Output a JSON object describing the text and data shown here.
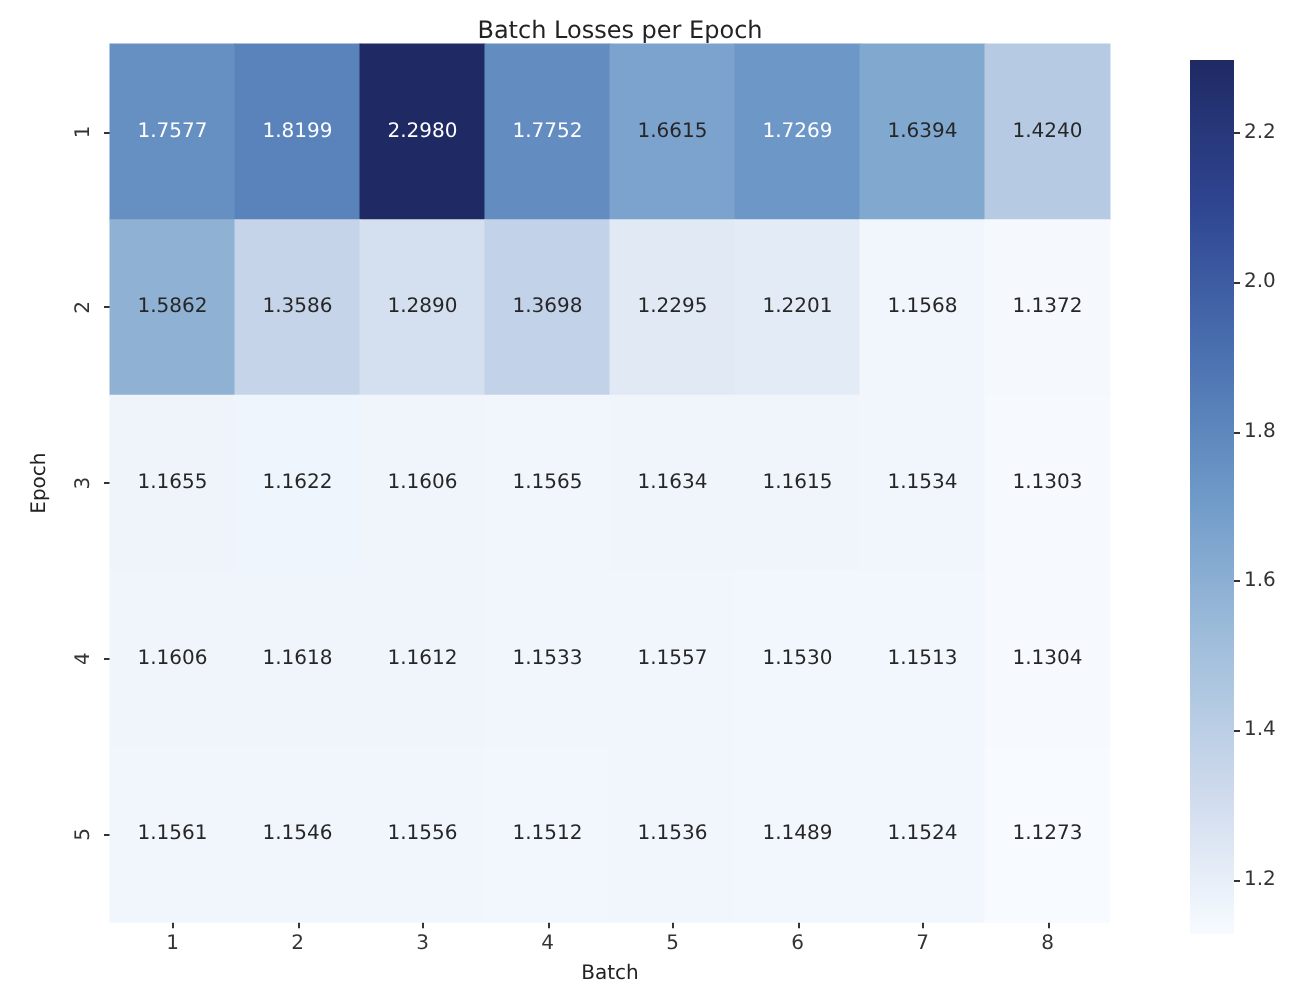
{
  "chart_data": {
    "type": "heatmap",
    "title": "Batch Losses per Epoch",
    "xlabel": "Batch",
    "ylabel": "Epoch",
    "categories": [
      "1",
      "2",
      "3",
      "4",
      "5",
      "6",
      "7",
      "8"
    ],
    "y_categories": [
      "1",
      "2",
      "3",
      "4",
      "5"
    ],
    "cells": [
      [
        1.7577,
        1.8199,
        2.298,
        1.7752,
        1.6615,
        1.7269,
        1.6394,
        1.424
      ],
      [
        1.5862,
        1.3586,
        1.289,
        1.3698,
        1.2295,
        1.2201,
        1.1568,
        1.1372
      ],
      [
        1.1655,
        1.1622,
        1.1606,
        1.1565,
        1.1634,
        1.1615,
        1.1534,
        1.1303
      ],
      [
        1.1606,
        1.1618,
        1.1612,
        1.1533,
        1.1557,
        1.153,
        1.1513,
        1.1304
      ],
      [
        1.1561,
        1.1546,
        1.1556,
        1.1512,
        1.1536,
        1.1489,
        1.1524,
        1.1273
      ]
    ],
    "cell_labels": [
      [
        "1.7577",
        "1.8199",
        "2.2980",
        "1.7752",
        "1.6615",
        "1.7269",
        "1.6394",
        "1.4240"
      ],
      [
        "1.5862",
        "1.3586",
        "1.2890",
        "1.3698",
        "1.2295",
        "1.2201",
        "1.1568",
        "1.1372"
      ],
      [
        "1.1655",
        "1.1622",
        "1.1606",
        "1.1565",
        "1.1634",
        "1.1615",
        "1.1534",
        "1.1303"
      ],
      [
        "1.1606",
        "1.1618",
        "1.1612",
        "1.1533",
        "1.1557",
        "1.1530",
        "1.1513",
        "1.1304"
      ],
      [
        "1.1561",
        "1.1546",
        "1.1556",
        "1.1512",
        "1.1536",
        "1.1489",
        "1.1524",
        "1.1273"
      ]
    ],
    "clim": [
      1.1273,
      2.298
    ],
    "cticks": [
      1.2,
      1.4,
      1.6,
      1.8,
      {
        "value": 2.0,
        "label": "2.0"
      },
      2.2
    ],
    "data_labels": true
  }
}
